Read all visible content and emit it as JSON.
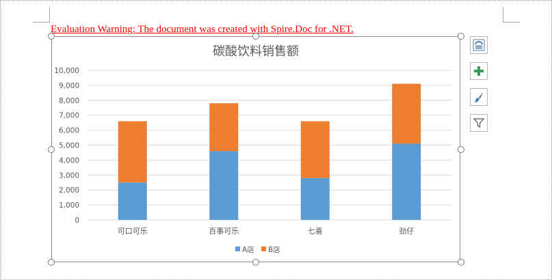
{
  "document": {
    "warning_text": "Evaluation Warning: The document was created with Spire.Doc for .NET."
  },
  "chart_buttons": [
    {
      "name": "layout-options-icon"
    },
    {
      "name": "chart-elements-icon"
    },
    {
      "name": "chart-styles-icon"
    },
    {
      "name": "chart-filters-icon"
    }
  ],
  "colors": {
    "series_a": "#5b9bd5",
    "series_b": "#ed7d31",
    "grid": "#d9d9d9",
    "axis_text": "#595959",
    "title_text": "#595959",
    "warning": "#ff0000"
  },
  "chart_data": {
    "type": "bar",
    "stacked": true,
    "title": "碳酸饮料销售额",
    "categories": [
      "可口可乐",
      "百事可乐",
      "七喜",
      "劲仔"
    ],
    "series": [
      {
        "name": "A店",
        "values": [
          2500,
          4600,
          2800,
          5100
        ]
      },
      {
        "name": "B店",
        "values": [
          4100,
          3200,
          3800,
          4000
        ]
      }
    ],
    "ylim": [
      0,
      10000
    ],
    "yticks": [
      "0",
      "1,000",
      "2,000",
      "3,000",
      "4,000",
      "5,000",
      "6,000",
      "7,000",
      "8,000",
      "9,000",
      "10,000"
    ],
    "grid": true,
    "legend_position": "bottom"
  }
}
